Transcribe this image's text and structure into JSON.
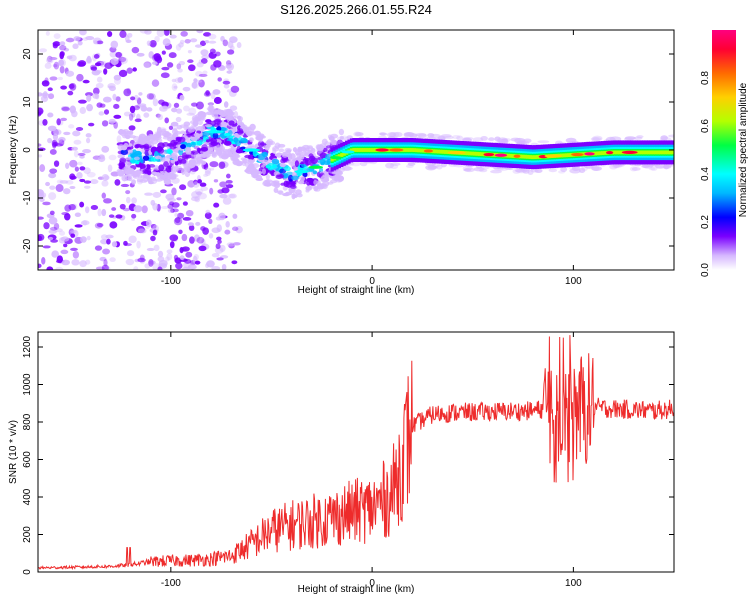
{
  "title": "S126.2025.266.01.55.R24",
  "chart_data": [
    {
      "type": "heatmap",
      "title": "S126.2025.266.01.55.R24",
      "xlabel": "Height of straight line (km)",
      "ylabel": "Frequency (Hz)",
      "xlim": [
        -166,
        150
      ],
      "ylim": [
        -25,
        25
      ],
      "xticks": [
        -100,
        0,
        100
      ],
      "yticks": [
        -20,
        -10,
        0,
        10,
        20
      ],
      "colorbar": {
        "label": "Normalized spectral amplitude",
        "range": [
          0,
          1
        ],
        "ticks": [
          0.0,
          0.2,
          0.4,
          0.6,
          0.8
        ],
        "tick_labels": [
          "0.0",
          "0.2",
          "0.4",
          "0.6",
          "0.8"
        ],
        "stops": [
          "#ffffff",
          "#d6b8ff",
          "#7a00ff",
          "#0000ff",
          "#00b7ff",
          "#00ffff",
          "#00ff44",
          "#b4ff00",
          "#ffd000",
          "#ff6a00",
          "#ff0033",
          "#ff007f"
        ]
      },
      "signal_centerline": {
        "x": [
          -122,
          -110,
          -100,
          -90,
          -80,
          -70,
          -60,
          -50,
          -40,
          -30,
          -20,
          -10,
          0,
          20,
          40,
          60,
          80,
          100,
          120,
          150
        ],
        "freq": [
          -1,
          -2,
          -1,
          1,
          4,
          3,
          0,
          -3,
          -5,
          -4,
          -2,
          0,
          0,
          0,
          -0.5,
          -1,
          -1.5,
          -1,
          -0.5,
          -0.5
        ]
      }
    },
    {
      "type": "line",
      "xlabel": "Height of straight line (km)",
      "ylabel": "SNR (10 * v/v)",
      "xlim": [
        -166,
        150
      ],
      "ylim": [
        0,
        1280
      ],
      "xticks": [
        -100,
        0,
        100
      ],
      "yticks": [
        0,
        200,
        400,
        600,
        800,
        1000,
        1200
      ],
      "color": "#ee2b2b",
      "series": [
        {
          "name": "SNR",
          "x": [
            -166,
            -150,
            -130,
            -120,
            -110,
            -100,
            -90,
            -80,
            -70,
            -60,
            -50,
            -40,
            -30,
            -20,
            -10,
            0,
            10,
            15,
            20,
            30,
            40,
            60,
            80,
            85,
            90,
            95,
            100,
            105,
            110,
            120,
            130,
            140,
            150
          ],
          "y": [
            22,
            25,
            30,
            38,
            55,
            60,
            62,
            70,
            85,
            150,
            220,
            250,
            270,
            290,
            320,
            340,
            420,
            600,
            780,
            840,
            850,
            855,
            860,
            870,
            880,
            870,
            890,
            860,
            880,
            870,
            865,
            860,
            870
          ]
        }
      ]
    }
  ]
}
